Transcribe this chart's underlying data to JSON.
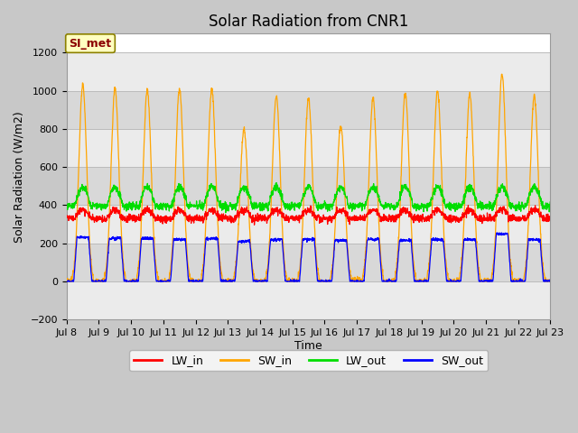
{
  "title": "Solar Radiation from CNR1",
  "xlabel": "Time",
  "ylabel": "Solar Radiation (W/m2)",
  "ylim": [
    -200,
    1300
  ],
  "yticks": [
    -200,
    0,
    200,
    400,
    600,
    800,
    1000,
    1200
  ],
  "x_tick_labels": [
    "Jul 8",
    "Jul 9",
    "Jul 10",
    "Jul 11",
    "Jul 12",
    "Jul 13",
    "Jul 14",
    "Jul 15",
    "Jul 16",
    "Jul 17",
    "Jul 18",
    "Jul 19",
    "Jul 20",
    "Jul 21",
    "Jul 22",
    "Jul 23"
  ],
  "annotation_text": "SI_met",
  "annotation_color": "#8B0000",
  "annotation_bg": "#FFFFC0",
  "annotation_border": "#8B8000",
  "colors": {
    "LW_in": "#FF0000",
    "SW_in": "#FFA500",
    "LW_out": "#00DD00",
    "SW_out": "#0000FF"
  },
  "bg_color": "#C8C8C8",
  "plot_bg": "#FFFFFF",
  "grid_colors": [
    "#E8E8E8",
    "#D0D0D0"
  ],
  "title_fontsize": 12,
  "label_fontsize": 9,
  "tick_fontsize": 8,
  "n_days": 15,
  "pts_per_day": 144,
  "sw_in_peaks": [
    1035,
    1010,
    1005,
    1010,
    1010,
    800,
    975,
    960,
    820,
    960,
    990,
    1000,
    980,
    1090,
    975
  ],
  "sw_out_peaks": [
    230,
    225,
    225,
    220,
    225,
    210,
    220,
    220,
    215,
    220,
    215,
    220,
    218,
    250,
    220
  ],
  "lw_in_base": 330,
  "lw_in_amp": 45,
  "lw_out_base": 395,
  "lw_out_amp": 100
}
